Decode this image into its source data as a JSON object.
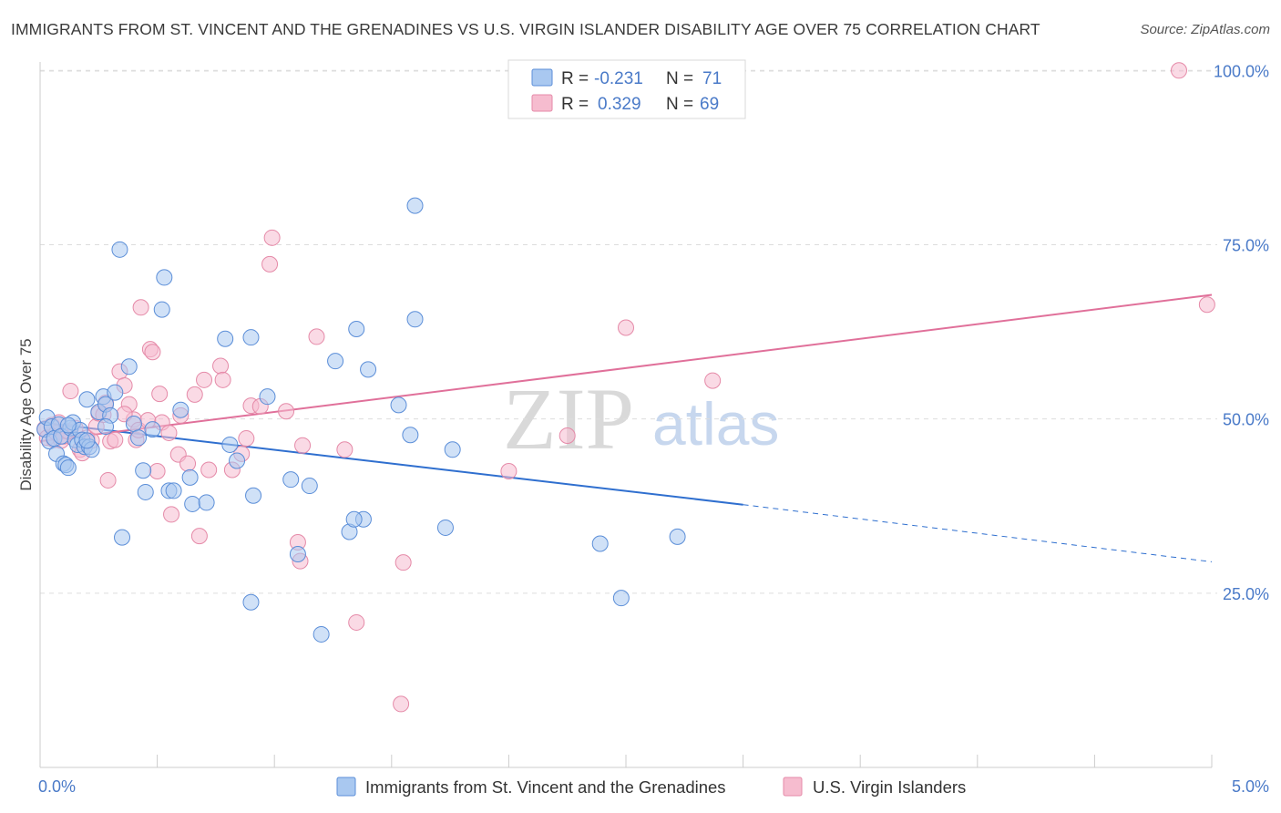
{
  "title": "IMMIGRANTS FROM ST. VINCENT AND THE GRENADINES VS U.S. VIRGIN ISLANDER DISABILITY AGE OVER 75 CORRELATION CHART",
  "source": "Source: ZipAtlas.com",
  "watermark": {
    "zip": "ZIP",
    "atlas": "atlas"
  },
  "colors": {
    "blue_fill": "#a9c8f0",
    "blue_stroke": "#5b8ed8",
    "blue_line": "#2f6fcf",
    "pink_fill": "#f6bccf",
    "pink_stroke": "#e58aa8",
    "pink_line": "#e0709a",
    "tick_text": "#4a7ac8",
    "grid": "#dddddd"
  },
  "legend": {
    "rows": [
      {
        "r_label": "R =",
        "r_value": "-0.231",
        "n_label": "N =",
        "n_value": "71"
      },
      {
        "r_label": "R =",
        "r_value": "0.329",
        "n_label": "N =",
        "n_value": "69"
      }
    ]
  },
  "bottom_legend": [
    {
      "label": "Immigrants from St. Vincent and the Grenadines"
    },
    {
      "label": "U.S. Virgin Islanders"
    }
  ],
  "chart_data": {
    "type": "scatter",
    "xlabel": "",
    "ylabel": "Disability Age Over 75",
    "xlim": [
      0,
      5
    ],
    "ylim": [
      0,
      102
    ],
    "x_tick_labels": [
      "0.0%",
      "5.0%"
    ],
    "y_ticks": [
      25,
      50,
      75,
      100
    ],
    "y_tick_labels": [
      "25.0%",
      "50.0%",
      "75.0%",
      "100.0%"
    ],
    "grid": true,
    "legend_position": "top-center",
    "series": [
      {
        "name": "Immigrants from St. Vincent and the Grenadines",
        "color": "#a9c8f0",
        "r": -0.231,
        "n": 71,
        "trend": {
          "x0": 0,
          "y0": 49.5,
          "x1": 3.0,
          "y1": 37.7,
          "x_dash_end": 5.0,
          "y_dash_end": 29.5
        },
        "points": [
          [
            0.02,
            48.5
          ],
          [
            0.03,
            50.2
          ],
          [
            0.04,
            46.8
          ],
          [
            0.05,
            48.9
          ],
          [
            0.06,
            47.2
          ],
          [
            0.07,
            45.0
          ],
          [
            0.08,
            49.2
          ],
          [
            0.09,
            47.5
          ],
          [
            0.1,
            43.6
          ],
          [
            0.11,
            43.4
          ],
          [
            0.12,
            43.0
          ],
          [
            0.13,
            48.7
          ],
          [
            0.14,
            49.5
          ],
          [
            0.15,
            47.0
          ],
          [
            0.16,
            46.3
          ],
          [
            0.17,
            48.4
          ],
          [
            0.18,
            47.0
          ],
          [
            0.19,
            46.0
          ],
          [
            0.2,
            52.8
          ],
          [
            0.21,
            46.0
          ],
          [
            0.22,
            45.6
          ],
          [
            0.25,
            51.0
          ],
          [
            0.27,
            53.2
          ],
          [
            0.28,
            52.1
          ],
          [
            0.3,
            50.5
          ],
          [
            0.32,
            53.8
          ],
          [
            0.34,
            74.3
          ],
          [
            0.38,
            57.5
          ],
          [
            0.4,
            49.3
          ],
          [
            0.42,
            47.3
          ],
          [
            0.44,
            42.6
          ],
          [
            0.45,
            39.5
          ],
          [
            0.48,
            48.5
          ],
          [
            0.52,
            65.7
          ],
          [
            0.53,
            70.3
          ],
          [
            0.55,
            39.7
          ],
          [
            0.57,
            39.7
          ],
          [
            0.6,
            51.3
          ],
          [
            0.64,
            41.6
          ],
          [
            0.65,
            37.8
          ],
          [
            0.71,
            38.0
          ],
          [
            0.79,
            61.5
          ],
          [
            0.81,
            46.3
          ],
          [
            0.84,
            44.0
          ],
          [
            0.9,
            61.7
          ],
          [
            0.91,
            39.0
          ],
          [
            0.97,
            53.2
          ],
          [
            1.07,
            41.3
          ],
          [
            1.15,
            40.4
          ],
          [
            1.26,
            58.3
          ],
          [
            1.35,
            62.9
          ],
          [
            1.38,
            35.6
          ],
          [
            1.4,
            57.1
          ],
          [
            1.53,
            52.0
          ],
          [
            1.58,
            47.7
          ],
          [
            1.6,
            80.6
          ],
          [
            1.6,
            64.3
          ],
          [
            1.73,
            34.4
          ],
          [
            1.76,
            45.6
          ],
          [
            2.39,
            32.1
          ],
          [
            2.48,
            24.3
          ],
          [
            2.72,
            33.1
          ],
          [
            0.35,
            33.0
          ],
          [
            0.9,
            23.7
          ],
          [
            1.1,
            30.6
          ],
          [
            1.2,
            19.1
          ],
          [
            1.32,
            33.8
          ],
          [
            1.34,
            35.6
          ],
          [
            0.12,
            49.1
          ],
          [
            0.2,
            46.9
          ],
          [
            0.28,
            48.9
          ]
        ]
      },
      {
        "name": "U.S. Virgin Islanders",
        "color": "#f6bccf",
        "r": 0.329,
        "n": 69,
        "trend": {
          "x0": 0,
          "y0": 46.8,
          "x1": 5.0,
          "y1": 67.8
        },
        "points": [
          [
            0.02,
            48.6
          ],
          [
            0.03,
            47.3
          ],
          [
            0.05,
            49.1
          ],
          [
            0.06,
            47.0
          ],
          [
            0.07,
            48.0
          ],
          [
            0.08,
            49.5
          ],
          [
            0.09,
            46.9
          ],
          [
            0.1,
            47.5
          ],
          [
            0.12,
            48.2
          ],
          [
            0.13,
            54.0
          ],
          [
            0.15,
            48.7
          ],
          [
            0.17,
            45.6
          ],
          [
            0.18,
            45.1
          ],
          [
            0.2,
            47.3
          ],
          [
            0.22,
            46.9
          ],
          [
            0.24,
            48.9
          ],
          [
            0.25,
            50.8
          ],
          [
            0.27,
            50.6
          ],
          [
            0.28,
            52.3
          ],
          [
            0.29,
            41.2
          ],
          [
            0.3,
            46.8
          ],
          [
            0.32,
            47.0
          ],
          [
            0.34,
            56.8
          ],
          [
            0.36,
            54.8
          ],
          [
            0.38,
            52.1
          ],
          [
            0.4,
            49.9
          ],
          [
            0.41,
            47.0
          ],
          [
            0.42,
            48.4
          ],
          [
            0.43,
            66.0
          ],
          [
            0.47,
            60.0
          ],
          [
            0.48,
            59.6
          ],
          [
            0.5,
            42.5
          ],
          [
            0.51,
            53.6
          ],
          [
            0.52,
            49.5
          ],
          [
            0.56,
            36.3
          ],
          [
            0.59,
            44.9
          ],
          [
            0.6,
            50.5
          ],
          [
            0.63,
            43.6
          ],
          [
            0.66,
            53.5
          ],
          [
            0.68,
            33.2
          ],
          [
            0.7,
            55.6
          ],
          [
            0.72,
            42.7
          ],
          [
            0.77,
            57.6
          ],
          [
            0.78,
            55.6
          ],
          [
            0.82,
            42.7
          ],
          [
            0.86,
            45.0
          ],
          [
            0.9,
            51.9
          ],
          [
            0.94,
            51.8
          ],
          [
            0.99,
            76.0
          ],
          [
            0.98,
            72.2
          ],
          [
            1.05,
            51.1
          ],
          [
            1.1,
            32.3
          ],
          [
            1.12,
            46.2
          ],
          [
            1.11,
            29.6
          ],
          [
            1.18,
            61.8
          ],
          [
            1.3,
            45.6
          ],
          [
            1.35,
            20.8
          ],
          [
            1.55,
            29.4
          ],
          [
            1.54,
            9.1
          ],
          [
            2.0,
            42.5
          ],
          [
            2.25,
            47.6
          ],
          [
            2.5,
            63.1
          ],
          [
            2.87,
            55.5
          ],
          [
            4.86,
            100.0
          ],
          [
            4.98,
            66.4
          ],
          [
            0.46,
            49.8
          ],
          [
            0.36,
            50.7
          ],
          [
            0.55,
            48.0
          ],
          [
            0.88,
            47.2
          ]
        ]
      }
    ]
  }
}
